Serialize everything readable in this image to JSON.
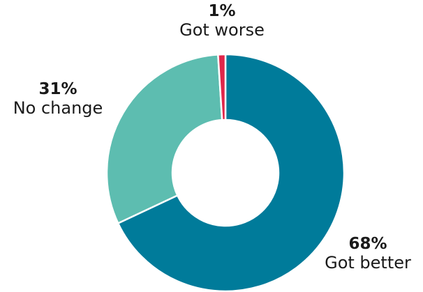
{
  "chart_data": {
    "type": "pie",
    "variant": "donut",
    "slices": [
      {
        "label": "Got better",
        "value": 68,
        "value_label": "68%",
        "color": "#007B9A"
      },
      {
        "label": "No change",
        "value": 31,
        "value_label": "31%",
        "color": "#5DBDB0"
      },
      {
        "label": "Got worse",
        "value": 1,
        "value_label": "1%",
        "color": "#E0264A"
      }
    ],
    "legend": "none",
    "slice_border_color": "#ffffff"
  }
}
